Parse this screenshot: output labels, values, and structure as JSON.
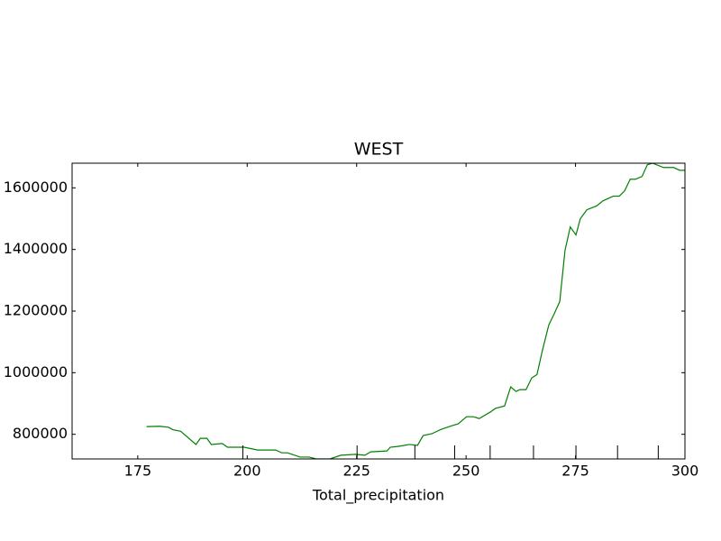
{
  "chart_data": {
    "type": "line",
    "title": "WEST",
    "x_label": "Total_precipitation",
    "xlim": [
      160,
      300
    ],
    "ylim": [
      720000,
      1680000
    ],
    "xticks": [
      175,
      200,
      225,
      250,
      275,
      300
    ],
    "yticks": [
      800000,
      1000000,
      1200000,
      1400000,
      1600000
    ],
    "deciles": [
      199.0,
      225.1,
      238.3,
      247.4,
      255.5,
      265.4,
      275.1,
      284.6,
      293.9
    ],
    "series": [
      {
        "color": "#008000",
        "x": [
          177,
          180,
          182,
          183,
          184.8,
          188.3,
          189.3,
          190.8,
          191.8,
          194.3,
          195.5,
          199.3,
          202.4,
          206.5,
          207.9,
          209.2,
          212.1,
          214.1,
          215.8,
          218.9,
          221.4,
          224.7,
          226.9,
          228.2,
          231.9,
          232.7,
          234.6,
          237.1,
          238.9,
          240.2,
          242.2,
          244.3,
          246.8,
          248.2,
          250.1,
          251.7,
          253.0,
          255.5,
          256.7,
          258.8,
          260.2,
          261.4,
          262.3,
          263.7,
          265.0,
          266.2,
          267.4,
          268.9,
          270.1,
          271.4,
          272.6,
          273.8,
          275.1,
          276.1,
          277.6,
          279.8,
          281.3,
          283.6,
          285.0,
          286.2,
          287.5,
          288.7,
          290.2,
          291.4,
          292.6,
          295.1,
          297.4,
          298.8,
          300.0
        ],
        "values": [
          825000,
          826000,
          823000,
          815000,
          810000,
          767000,
          787000,
          787000,
          767000,
          770000,
          758000,
          758000,
          749000,
          749000,
          740000,
          740000,
          726000,
          726000,
          720000,
          720000,
          732000,
          735000,
          732000,
          743000,
          746000,
          758000,
          761000,
          767000,
          764000,
          796000,
          802000,
          816000,
          828000,
          834000,
          857000,
          857000,
          851000,
          872000,
          884000,
          892000,
          954000,
          939000,
          945000,
          945000,
          983000,
          994000,
          1070000,
          1155000,
          1190000,
          1231000,
          1397000,
          1473000,
          1447000,
          1500000,
          1529000,
          1541000,
          1558000,
          1573000,
          1573000,
          1590000,
          1628000,
          1628000,
          1637000,
          1675000,
          1680000,
          1666000,
          1666000,
          1657000,
          1657000
        ]
      }
    ]
  }
}
